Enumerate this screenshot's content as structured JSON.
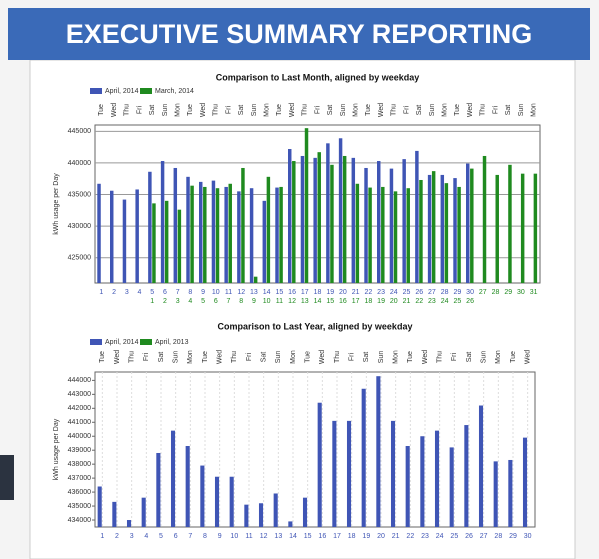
{
  "header": {
    "title": "EXECUTIVE SUMMARY REPORTING"
  },
  "chart_data": [
    {
      "type": "bar",
      "title": "Comparison to Last Month, aligned by weekday",
      "y_label": "kWh usage per Day",
      "categories": [
        "Tue",
        "Wed",
        "Thu",
        "Fri",
        "Sat",
        "Sun",
        "Mon",
        "Tue",
        "Wed",
        "Thu",
        "Fri",
        "Sat",
        "Sun",
        "Mon",
        "Tue",
        "Wed",
        "Thu",
        "Fri",
        "Sat",
        "Sun",
        "Mon",
        "Tue",
        "Wed",
        "Thu",
        "Fri",
        "Sat",
        "Sun",
        "Mon",
        "Tue",
        "Wed",
        "Thu",
        "Fri",
        "Sat",
        "Sun",
        "Mon"
      ],
      "series": [
        {
          "name": "April, 2014",
          "color": "#3f55b5",
          "values": [
            436700,
            435600,
            434200,
            435800,
            438600,
            440300,
            439200,
            437800,
            437000,
            437200,
            436200,
            435500,
            436000,
            434000,
            436100,
            442200,
            441100,
            440800,
            443100,
            443900,
            440800,
            439200,
            440300,
            439100,
            440600,
            441900,
            438100,
            438100,
            437600,
            439900,
            null,
            null,
            null,
            null,
            null
          ],
          "days": [
            1,
            2,
            3,
            4,
            5,
            6,
            7,
            8,
            9,
            10,
            11,
            12,
            13,
            14,
            15,
            16,
            17,
            18,
            19,
            20,
            21,
            22,
            23,
            24,
            25,
            26,
            27,
            28,
            29,
            30,
            null,
            null,
            null,
            null,
            null
          ]
        },
        {
          "name": "March, 2014",
          "color": "#1f8a1f",
          "values": [
            null,
            null,
            null,
            null,
            433600,
            434000,
            432600,
            436400,
            436200,
            436000,
            436700,
            439200,
            422000,
            437800,
            436200,
            440300,
            445500,
            441700,
            439700,
            441100,
            436700,
            436100,
            436200,
            435500,
            436000,
            437300,
            438700,
            436800,
            436200,
            439100,
            441100,
            438100,
            439700,
            438300,
            438300
          ],
          "days": [
            null,
            null,
            null,
            null,
            1,
            2,
            3,
            4,
            5,
            6,
            7,
            8,
            9,
            10,
            11,
            12,
            13,
            14,
            15,
            16,
            17,
            18,
            19,
            20,
            21,
            22,
            23,
            24,
            25,
            26,
            27,
            28,
            29,
            30,
            31
          ]
        }
      ],
      "ylim": [
        421000,
        446000
      ],
      "yticks": [
        425000,
        430000,
        435000,
        440000,
        445000
      ],
      "grid": true
    },
    {
      "type": "bar",
      "title": "Comparison to Last Year, aligned by weekday",
      "y_label": "kWh usage per Day",
      "categories": [
        "Tue",
        "Wed",
        "Thu",
        "Fri",
        "Sat",
        "Sun",
        "Mon",
        "Tue",
        "Wed",
        "Thu",
        "Fri",
        "Sat",
        "Sun",
        "Mon",
        "Tue",
        "Wed",
        "Thu",
        "Fri",
        "Sat",
        "Sun",
        "Mon",
        "Tue",
        "Wed",
        "Thu",
        "Fri",
        "Sat",
        "Sun",
        "Mon",
        "Tue",
        "Wed"
      ],
      "series": [
        {
          "name": "April, 2014",
          "color": "#3f55b5",
          "values": [
            436400,
            435300,
            434000,
            435600,
            438800,
            440400,
            439300,
            437900,
            437100,
            437100,
            435100,
            435200,
            435900,
            433900,
            435600,
            442400,
            441100,
            441100,
            443400,
            444300,
            441100,
            439300,
            440000,
            440400,
            439200,
            440800,
            442200,
            438200,
            438300,
            439900
          ],
          "days": [
            1,
            2,
            3,
            4,
            5,
            6,
            7,
            8,
            9,
            10,
            11,
            12,
            13,
            14,
            15,
            16,
            17,
            18,
            19,
            20,
            21,
            22,
            23,
            24,
            25,
            26,
            27,
            28,
            29,
            30
          ]
        },
        {
          "name": "April, 2013",
          "color": "#1f8a1f",
          "values": [
            null,
            null,
            null,
            null,
            null,
            null,
            null,
            null,
            null,
            null,
            null,
            null,
            null,
            null,
            null,
            null,
            null,
            null,
            null,
            null,
            null,
            null,
            null,
            null,
            null,
            null,
            null,
            null,
            null,
            null
          ]
        }
      ],
      "ylim": [
        433500,
        444600
      ],
      "yticks": [
        434000,
        435000,
        436000,
        437000,
        438000,
        439000,
        440000,
        441000,
        442000,
        443000,
        444000
      ],
      "grid": false
    }
  ]
}
